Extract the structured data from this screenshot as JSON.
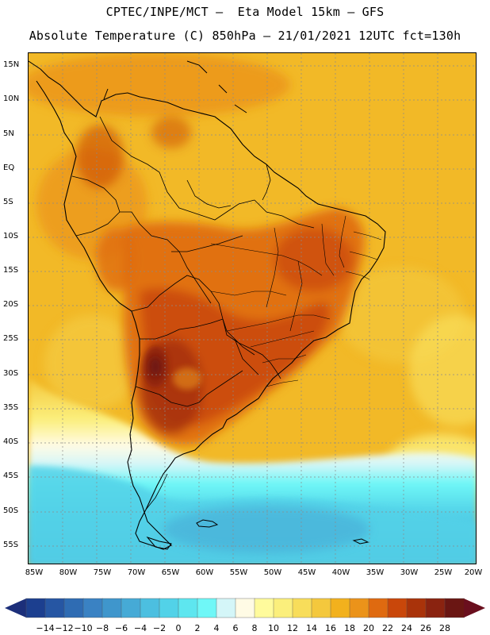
{
  "title": {
    "line1": "CPTEC/INPE/MCT –  Eta Model 15km – GFS",
    "line2": "Absolute Temperature (C) 850hPa – 21/01/2021 12UTC fct=130h"
  },
  "map": {
    "lat_labels": [
      "15N",
      "10N",
      "5N",
      "EQ",
      "5S",
      "10S",
      "15S",
      "20S",
      "25S",
      "30S",
      "35S",
      "40S",
      "45S",
      "50S",
      "55S"
    ],
    "lon_labels": [
      "85W",
      "80W",
      "75W",
      "70W",
      "65W",
      "60W",
      "55W",
      "50W",
      "45W",
      "40W",
      "35W",
      "30W",
      "25W",
      "20W"
    ]
  },
  "colorbar": {
    "labels": [
      "-14",
      "-12",
      "-10",
      "-8",
      "-6",
      "-4",
      "-2",
      "0",
      "2",
      "4",
      "6",
      "8",
      "10",
      "12",
      "14",
      "16",
      "18",
      "20",
      "22",
      "24",
      "26",
      "28"
    ],
    "colors": [
      "#1c3f8f",
      "#2656a3",
      "#2f6cb3",
      "#3a82c3",
      "#3f96cc",
      "#46aad6",
      "#4cbfe0",
      "#52d2e8",
      "#5ee6ef",
      "#6ff7f7",
      "#d4f6f8",
      "#fffbe5",
      "#fffb9c",
      "#fbef7c",
      "#f8dd5a",
      "#f4c83d",
      "#f2b11d",
      "#eb931a",
      "#df6a10",
      "#c9470a",
      "#a9330a",
      "#8a2310",
      "#6a1613"
    ],
    "left_arrow_color": "#1c2f7a",
    "right_arrow_color": "#6a0f1e"
  }
}
